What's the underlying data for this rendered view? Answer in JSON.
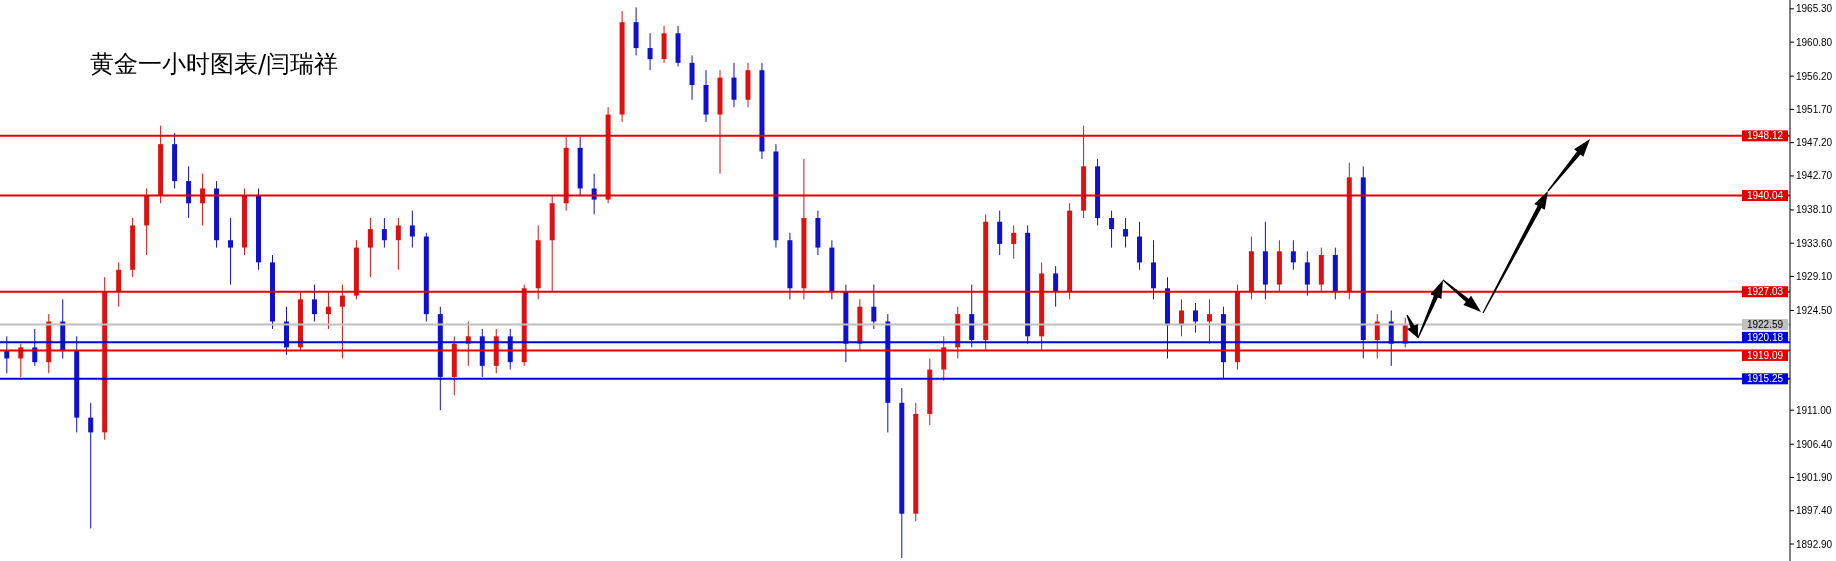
{
  "chart_data": {
    "type": "candlestick",
    "title": "黄金一小时图表/闫瑞祥",
    "categories": [
      null,
      null,
      null,
      null,
      null,
      null,
      null,
      null,
      null,
      null,
      null,
      null,
      null,
      null,
      null,
      null,
      null,
      null,
      null,
      null,
      null,
      null,
      null,
      null,
      null,
      null,
      null,
      null,
      null,
      null,
      null,
      null,
      null,
      null,
      null,
      null,
      null,
      null,
      null,
      null,
      null,
      null,
      null,
      null,
      null,
      null,
      null,
      null,
      null,
      null,
      null,
      null,
      null,
      null,
      null,
      null,
      null,
      null,
      null,
      null,
      null,
      null,
      null,
      null,
      null,
      null,
      null,
      null,
      null,
      null,
      null,
      null,
      null,
      null,
      null,
      null,
      null,
      null,
      null,
      null,
      null,
      null,
      null,
      null,
      null,
      null,
      null,
      null,
      null,
      null,
      null,
      null,
      null,
      null,
      null,
      null,
      null,
      null,
      null,
      null,
      null,
      null,
      null,
      null,
      null,
      null,
      null,
      null,
      null,
      null,
      null,
      null,
      null,
      null,
      null,
      null,
      null,
      null,
      null,
      null,
      null,
      null,
      null,
      null,
      null,
      null,
      null,
      null
    ],
    "ohlc": [
      [
        1919,
        1921,
        1916,
        1918
      ],
      [
        1918,
        1920,
        1915.5,
        1919.5
      ],
      [
        1919.5,
        1922,
        1917,
        1917.5
      ],
      [
        1917.5,
        1924,
        1916,
        1923
      ],
      [
        1923,
        1926,
        1918,
        1919
      ],
      [
        1919,
        1921,
        1908,
        1910
      ],
      [
        1910,
        1912,
        1895,
        1908
      ],
      [
        1908,
        1929,
        1907,
        1927
      ],
      [
        1927,
        1931,
        1925,
        1930
      ],
      [
        1930,
        1937,
        1929,
        1936
      ],
      [
        1936,
        1941,
        1932,
        1940
      ],
      [
        1940,
        1949.5,
        1939,
        1947
      ],
      [
        1947,
        1948.5,
        1941,
        1942
      ],
      [
        1942,
        1944,
        1937,
        1939
      ],
      [
        1939,
        1943,
        1936,
        1941
      ],
      [
        1941,
        1942,
        1933,
        1934
      ],
      [
        1934,
        1937,
        1928,
        1933
      ],
      [
        1933,
        1941,
        1932,
        1940
      ],
      [
        1940,
        1941,
        1930,
        1931
      ],
      [
        1931,
        1932,
        1922,
        1923
      ],
      [
        1923,
        1925,
        1918.5,
        1919.5
      ],
      [
        1919.5,
        1927,
        1919,
        1926
      ],
      [
        1926,
        1928,
        1923,
        1924
      ],
      [
        1924,
        1927,
        1922,
        1925
      ],
      [
        1925,
        1928,
        1918,
        1926.5
      ],
      [
        1926.5,
        1934,
        1926,
        1933
      ],
      [
        1933,
        1937,
        1929,
        1935.5
      ],
      [
        1935.5,
        1937,
        1933,
        1934
      ],
      [
        1934,
        1937,
        1930,
        1936
      ],
      [
        1936,
        1938,
        1933,
        1934.5
      ],
      [
        1934.5,
        1935,
        1923,
        1924
      ],
      [
        1924,
        1925,
        1911,
        1915.5
      ],
      [
        1915.5,
        1921,
        1913,
        1920
      ],
      [
        1920,
        1923,
        1917,
        1921
      ],
      [
        1921,
        1922,
        1915.5,
        1917
      ],
      [
        1917,
        1922,
        1916,
        1921
      ],
      [
        1921,
        1922,
        1916.5,
        1917.5
      ],
      [
        1917.5,
        1928,
        1917,
        1927.5
      ],
      [
        1927.5,
        1936,
        1926,
        1934
      ],
      [
        1934,
        1940,
        1927,
        1939
      ],
      [
        1939,
        1948,
        1938,
        1946.5
      ],
      [
        1946.5,
        1948,
        1940,
        1941
      ],
      [
        1941,
        1943,
        1937.5,
        1939.5
      ],
      [
        1939.5,
        1952,
        1939,
        1951
      ],
      [
        1951,
        1965,
        1950,
        1963.5
      ],
      [
        1963.5,
        1965.5,
        1959,
        1960
      ],
      [
        1960,
        1962,
        1957,
        1958.5
      ],
      [
        1958.5,
        1963,
        1958,
        1962
      ],
      [
        1962,
        1963,
        1957.5,
        1958
      ],
      [
        1958,
        1959,
        1953,
        1955
      ],
      [
        1955,
        1957,
        1950,
        1951
      ],
      [
        1951,
        1957,
        1943,
        1956
      ],
      [
        1956,
        1958,
        1952,
        1953
      ],
      [
        1953,
        1958,
        1952,
        1957
      ],
      [
        1957,
        1958,
        1945,
        1946
      ],
      [
        1946,
        1947,
        1933,
        1934
      ],
      [
        1934,
        1935,
        1926,
        1927.5
      ],
      [
        1927.5,
        1945,
        1926,
        1937
      ],
      [
        1937,
        1938,
        1932,
        1933
      ],
      [
        1933,
        1934,
        1926,
        1927
      ],
      [
        1927,
        1928,
        1917.5,
        1920
      ],
      [
        1920,
        1926,
        1919,
        1925
      ],
      [
        1925,
        1928,
        1922,
        1923
      ],
      [
        1923,
        1924,
        1908,
        1912
      ],
      [
        1912,
        1914,
        1891,
        1897
      ],
      [
        1897,
        1912,
        1896,
        1910.5
      ],
      [
        1910.5,
        1918,
        1909,
        1916.5
      ],
      [
        1916.5,
        1921,
        1915,
        1919.5
      ],
      [
        1919.5,
        1925,
        1918,
        1924
      ],
      [
        1924,
        1928,
        1919.5,
        1920.5
      ],
      [
        1920.5,
        1937.5,
        1919,
        1936.5
      ],
      [
        1936.5,
        1938,
        1932,
        1933.5
      ],
      [
        1933.5,
        1936,
        1931.5,
        1935
      ],
      [
        1935,
        1936,
        1920,
        1921
      ],
      [
        1921,
        1931,
        1919,
        1929.5
      ],
      [
        1929.5,
        1930.5,
        1925,
        1927
      ],
      [
        1927,
        1939,
        1926,
        1938
      ],
      [
        1938,
        1949.5,
        1937,
        1944
      ],
      [
        1944,
        1945,
        1936,
        1937
      ],
      [
        1937,
        1938,
        1933,
        1935.5
      ],
      [
        1935.5,
        1937,
        1933,
        1934.5
      ],
      [
        1934.5,
        1936.5,
        1930,
        1931
      ],
      [
        1931,
        1934,
        1926,
        1927.5
      ],
      [
        1927.5,
        1929,
        1918,
        1922.5
      ],
      [
        1922.5,
        1926,
        1921,
        1924.5
      ],
      [
        1924.5,
        1925.5,
        1921.5,
        1923
      ],
      [
        1923,
        1926,
        1920,
        1924
      ],
      [
        1924,
        1925,
        1915.2,
        1917.5
      ],
      [
        1917.5,
        1928,
        1916.5,
        1927
      ],
      [
        1927,
        1934.5,
        1926,
        1932.5
      ],
      [
        1932.5,
        1936.5,
        1926,
        1928
      ],
      [
        1928,
        1934,
        1927,
        1932.5
      ],
      [
        1932.5,
        1934,
        1930,
        1931
      ],
      [
        1931,
        1932.5,
        1926.5,
        1928
      ],
      [
        1928,
        1933,
        1927,
        1932
      ],
      [
        1932,
        1933,
        1926,
        1927
      ],
      [
        1927,
        1944.5,
        1926,
        1942.5
      ],
      [
        1942.5,
        1944,
        1918,
        1920.5
      ],
      [
        1920.5,
        1924,
        1918,
        1923
      ],
      [
        1923,
        1924.5,
        1917,
        1920
      ],
      [
        1920,
        1923.5,
        1919.5,
        1922.5
      ],
      null,
      null,
      null,
      null,
      null,
      null,
      null,
      null,
      null,
      null,
      null,
      null,
      null,
      null,
      null,
      null,
      null,
      null,
      null,
      null,
      null,
      null,
      null,
      null,
      null,
      null,
      null
    ],
    "colors": [
      "#1111cc",
      "#dd1111",
      "#1111cc",
      "#dd1111",
      "#1111cc",
      "#1111cc",
      "#1111cc",
      "#dd1111",
      "#dd1111",
      "#dd1111",
      "#dd1111",
      "#dd1111",
      "#1111cc",
      "#1111cc",
      "#dd1111",
      "#1111cc",
      "#1111cc",
      "#dd1111",
      "#1111cc",
      "#1111cc",
      "#1111cc",
      "#dd1111",
      "#1111cc",
      "#dd1111",
      "#dd1111",
      "#dd1111",
      "#dd1111",
      "#1111cc",
      "#dd1111",
      "#1111cc",
      "#1111cc",
      "#1111cc",
      "#dd1111",
      "#dd1111",
      "#1111cc",
      "#dd1111",
      "#1111cc",
      "#dd1111",
      "#dd1111",
      "#dd1111",
      "#dd1111",
      "#1111cc",
      "#1111cc",
      "#dd1111",
      "#dd1111",
      "#1111cc",
      "#1111cc",
      "#dd1111",
      "#1111cc",
      "#1111cc",
      "#1111cc",
      "#dd1111",
      "#1111cc",
      "#dd1111",
      "#1111cc",
      "#1111cc",
      "#1111cc",
      "#dd1111",
      "#1111cc",
      "#1111cc",
      "#1111cc",
      "#dd1111",
      "#1111cc",
      "#1111cc",
      "#1111cc",
      "#dd1111",
      "#dd1111",
      "#dd1111",
      "#dd1111",
      "#1111cc",
      "#dd1111",
      "#1111cc",
      "#dd1111",
      "#1111cc",
      "#dd1111",
      "#1111cc",
      "#dd1111",
      "#dd1111",
      "#1111cc",
      "#1111cc",
      "#1111cc",
      "#1111cc",
      "#1111cc",
      "#1111cc",
      "#dd1111",
      "#1111cc",
      "#dd1111",
      "#1111cc",
      "#dd1111",
      "#dd1111",
      "#1111cc",
      "#dd1111",
      "#1111cc",
      "#1111cc",
      "#dd1111",
      "#1111cc",
      "#dd1111",
      "#1111cc",
      "#dd1111",
      "#1111cc",
      "#dd1111",
      null,
      null,
      null,
      null,
      null,
      null,
      null,
      null,
      null,
      null,
      null,
      null,
      null,
      null,
      null,
      null,
      null,
      null,
      null,
      null,
      null,
      null,
      null,
      null,
      null,
      null,
      null
    ],
    "ylim": [
      1890.6,
      1966.5
    ],
    "yticks": [
      {
        "value": 1965.3,
        "label": "1965.30"
      },
      {
        "value": 1960.8,
        "label": "1960.80"
      },
      {
        "value": 1956.2,
        "label": "1956.20"
      },
      {
        "value": 1951.7,
        "label": "1951.70"
      },
      {
        "value": 1947.2,
        "label": "1947.20"
      },
      {
        "value": 1942.7,
        "label": "1942.70"
      },
      {
        "value": 1938.1,
        "label": "1938.10"
      },
      {
        "value": 1933.6,
        "label": "1933.60"
      },
      {
        "value": 1929.1,
        "label": "1929.10"
      },
      {
        "value": 1924.5,
        "label": "1924.50"
      },
      {
        "value": 1911,
        "label": "1911.00"
      },
      {
        "value": 1906.4,
        "label": "1906.40"
      },
      {
        "value": 1901.9,
        "label": "1901.90"
      },
      {
        "value": 1897.4,
        "label": "1897.40"
      },
      {
        "value": 1892.9,
        "label": "1892.90"
      }
    ],
    "ref_lines": [
      {
        "axis": "y",
        "value": 1948.12,
        "label": "1948.12",
        "color": "#e00000"
      },
      {
        "axis": "y",
        "value": 1940.04,
        "label": "1940.04",
        "color": "#e00000"
      },
      {
        "axis": "y",
        "value": 1927.03,
        "label": "1927.03",
        "color": "#e00000"
      },
      {
        "axis": "y",
        "value": 1922.59,
        "label": "1922.59",
        "color": "#c0c0c0"
      },
      {
        "axis": "y",
        "value": 1920.18,
        "label": "1920.18",
        "color": "#0000dd"
      },
      {
        "axis": "y",
        "value": 1919.09,
        "label": "1919.09",
        "color": "#e00000"
      },
      {
        "axis": "y",
        "value": 1915.25,
        "label": "1915.25",
        "color": "#0000dd"
      }
    ],
    "tick_labels": "y",
    "grid": false,
    "legend": false
  }
}
